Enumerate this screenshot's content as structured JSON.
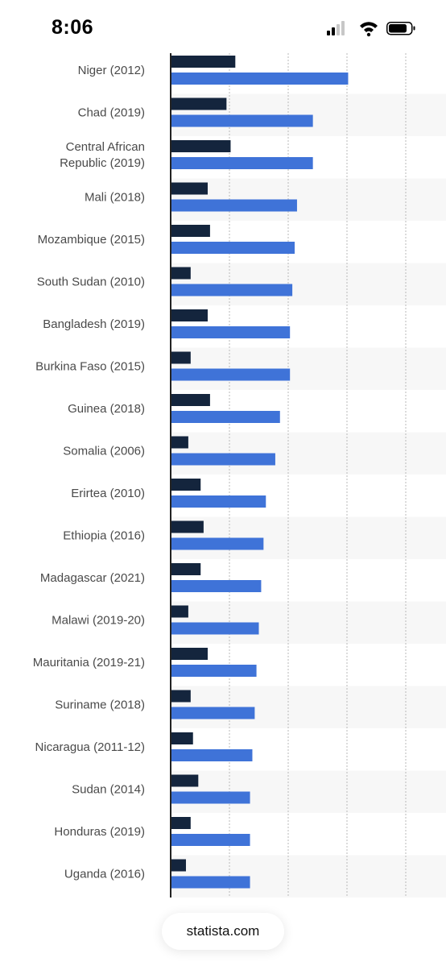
{
  "status_bar": {
    "time": "8:06",
    "signal_icon": "cellular-signal-icon",
    "wifi_icon": "wifi-icon",
    "battery_icon": "battery-icon"
  },
  "source": {
    "label": "statista.com"
  },
  "colors": {
    "series_dark": "#14253d",
    "series_blue": "#3f73d8",
    "band": "#f7f7f7",
    "grid": "#b8b8b8",
    "axis": "#222222"
  },
  "chart_data": {
    "type": "bar",
    "orientation": "horizontal",
    "title": "",
    "xlabel": "",
    "ylabel": "",
    "xlim": [
      0,
      4
    ],
    "grid": true,
    "categories": [
      [
        "Niger (2012)"
      ],
      [
        "Chad (2019)"
      ],
      [
        "Central African",
        "Republic (2019)"
      ],
      [
        "Mali (2018)"
      ],
      [
        "Mozambique (2015)"
      ],
      [
        "South Sudan (2010)"
      ],
      [
        "Bangladesh (2019)"
      ],
      [
        "Burkina Faso (2015)"
      ],
      [
        "Guinea (2018)"
      ],
      [
        "Somalia (2006)"
      ],
      [
        "Erirtea (2010)"
      ],
      [
        "Ethiopia (2016)"
      ],
      [
        "Madagascar (2021)"
      ],
      [
        "Malawi (2019-20)"
      ],
      [
        "Mauritania (2019-21)"
      ],
      [
        "Suriname (2018)"
      ],
      [
        "Nicaragua (2011-12)"
      ],
      [
        "Sudan (2014)"
      ],
      [
        "Honduras (2019)"
      ],
      [
        "Uganda (2016)"
      ]
    ],
    "series": [
      {
        "color": "#14253d",
        "values": [
          1.1,
          0.95,
          1.02,
          0.63,
          0.67,
          0.34,
          0.63,
          0.34,
          0.67,
          0.3,
          0.51,
          0.56,
          0.51,
          0.3,
          0.63,
          0.34,
          0.38,
          0.47,
          0.34,
          0.26
        ]
      },
      {
        "color": "#3f73d8",
        "values": [
          3.02,
          2.42,
          2.42,
          2.15,
          2.11,
          2.07,
          2.03,
          2.03,
          1.86,
          1.78,
          1.62,
          1.58,
          1.54,
          1.5,
          1.46,
          1.43,
          1.39,
          1.35,
          1.35,
          1.35
        ]
      }
    ]
  }
}
